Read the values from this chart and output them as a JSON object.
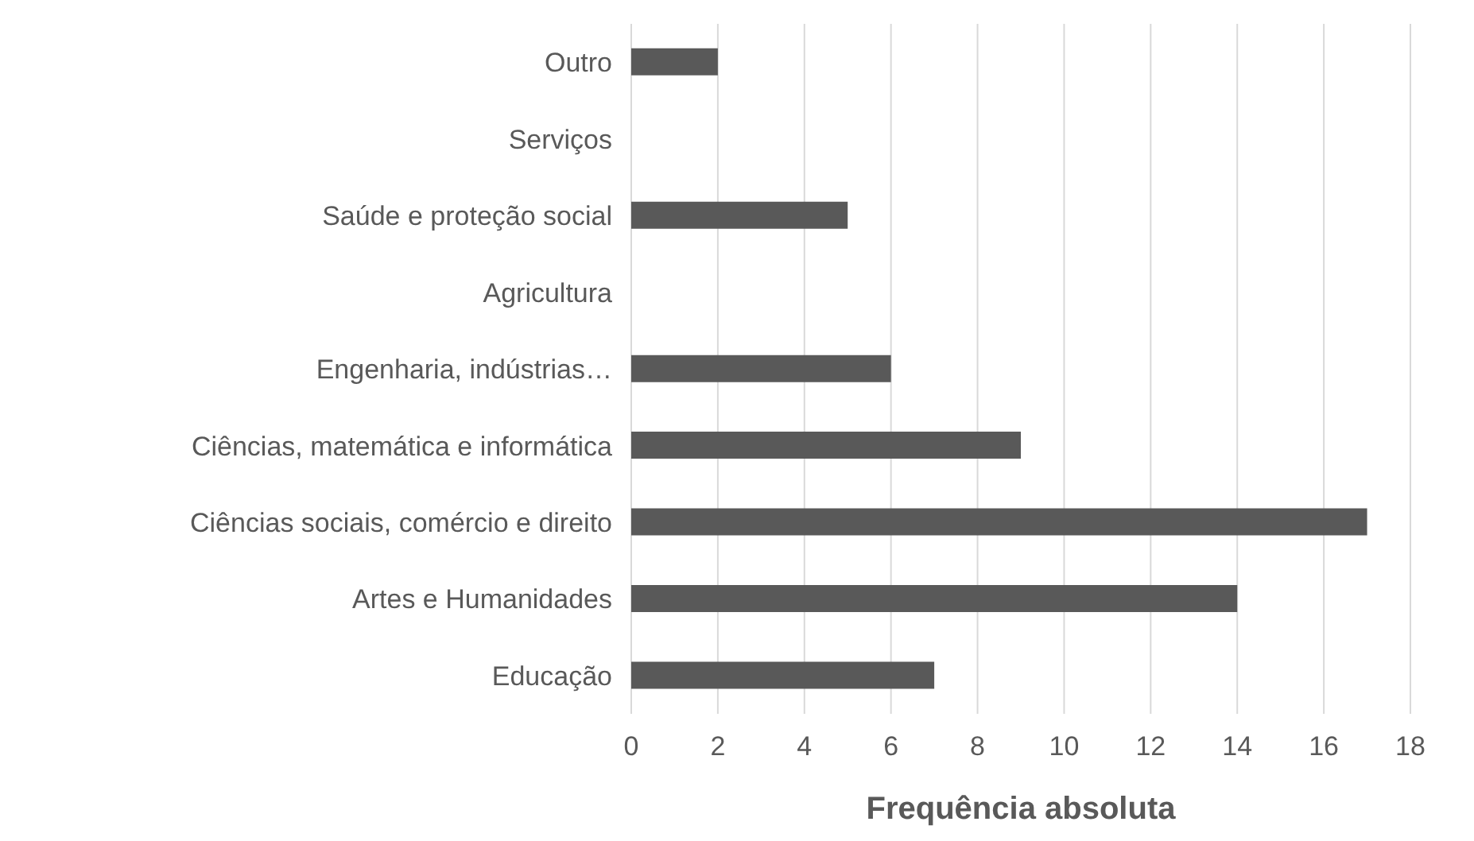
{
  "chart_data": {
    "type": "bar",
    "orientation": "horizontal",
    "xlabel": "Frequência absoluta",
    "categories": [
      "Outro",
      "Serviços",
      "Saúde e proteção social",
      "Agricultura",
      "Engenharia, indústrias…",
      "Ciências, matemática e informática",
      "Ciências sociais, comércio e direito",
      "Artes e Humanidades",
      "Educação"
    ],
    "values": [
      2,
      0,
      5,
      0,
      6,
      9,
      17,
      14,
      7
    ],
    "color": "#595959",
    "xlim": [
      0,
      18
    ],
    "xticks": [
      0,
      2,
      4,
      6,
      8,
      10,
      12,
      14,
      16,
      18
    ],
    "grid": "x"
  }
}
